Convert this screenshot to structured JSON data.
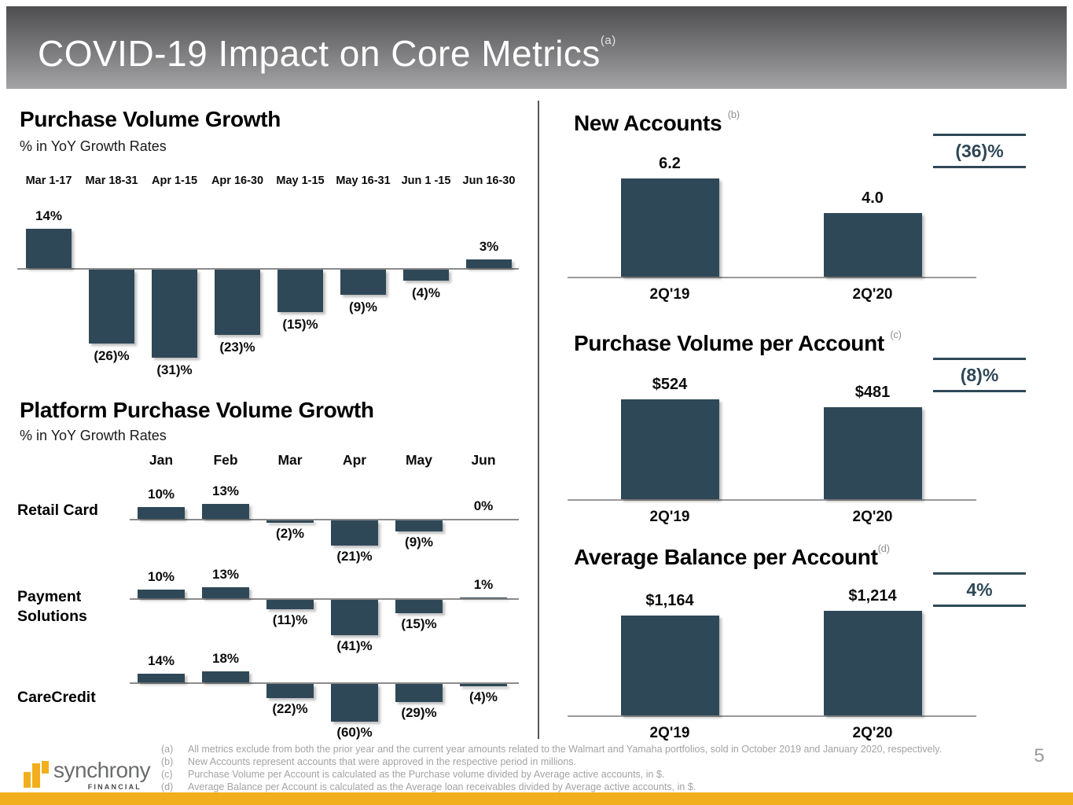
{
  "header": {
    "title": "COVID-19 Impact on Core Metrics",
    "footnote_ref": "(a)"
  },
  "chart_data": [
    {
      "id": "purchase_volume_growth",
      "type": "bar",
      "title": "Purchase Volume Growth",
      "subtitle": "% in YoY Growth Rates",
      "categories": [
        "Mar 1-17",
        "Mar 18-31",
        "Apr 1-15",
        "Apr 16-30",
        "May 1-15",
        "May 16-31",
        "Jun 1 -15",
        "Jun 16-30"
      ],
      "values": [
        14,
        -26,
        -31,
        -23,
        -15,
        -9,
        -4,
        3
      ],
      "labels": [
        "14%",
        "(26)%",
        "(31)%",
        "(23)%",
        "(15)%",
        "(9)%",
        "(4)%",
        "3%"
      ],
      "unit": "percent",
      "bar_color": "#2F4858"
    },
    {
      "id": "platform_purchase_volume_growth",
      "type": "bar",
      "title": "Platform Purchase Volume Growth",
      "subtitle": "% in YoY Growth Rates",
      "categories": [
        "Jan",
        "Feb",
        "Mar",
        "Apr",
        "May",
        "Jun"
      ],
      "series": [
        {
          "name": "Retail Card",
          "values": [
            10,
            13,
            -2,
            -21,
            -9,
            0
          ],
          "labels": [
            "10%",
            "13%",
            "(2)%",
            "(21)%",
            "(9)%",
            "0%"
          ]
        },
        {
          "name": "Payment Solutions",
          "values": [
            10,
            13,
            -11,
            -41,
            -15,
            1
          ],
          "labels": [
            "10%",
            "13%",
            "(11)%",
            "(41)%",
            "(15)%",
            "1%"
          ]
        },
        {
          "name": "CareCredit",
          "values": [
            14,
            18,
            -22,
            -60,
            -29,
            -4
          ],
          "labels": [
            "14%",
            "18%",
            "(22)%",
            "(60)%",
            "(29)%",
            "(4)%"
          ]
        }
      ],
      "unit": "percent",
      "bar_color": "#2F4858"
    },
    {
      "id": "new_accounts",
      "type": "bar",
      "title": "New Accounts",
      "footnote_ref": "(b)",
      "categories": [
        "2Q'19",
        "2Q'20"
      ],
      "values": [
        6.2,
        4.0
      ],
      "labels": [
        "6.2",
        "4.0"
      ],
      "change": "(36)%",
      "unit": "millions",
      "bar_color": "#2F4858"
    },
    {
      "id": "purchase_volume_per_account",
      "type": "bar",
      "title": "Purchase Volume per Account",
      "footnote_ref": "(c)",
      "categories": [
        "2Q'19",
        "2Q'20"
      ],
      "values": [
        524,
        481
      ],
      "labels": [
        "$524",
        "$481"
      ],
      "change": "(8)%",
      "unit": "dollars",
      "bar_color": "#2F4858"
    },
    {
      "id": "average_balance_per_account",
      "type": "bar",
      "title": "Average Balance per Account",
      "footnote_ref": "(d)",
      "categories": [
        "2Q'19",
        "2Q'20"
      ],
      "values": [
        1164,
        1214
      ],
      "labels": [
        "$1,164",
        "$1,214"
      ],
      "change": "4%",
      "unit": "dollars",
      "bar_color": "#2F4858"
    }
  ],
  "footnotes": [
    {
      "ref": "(a)",
      "text": "All metrics exclude from both the prior year and the current year amounts related to the Walmart and Yamaha portfolios, sold in October 2019 and January 2020, respectively."
    },
    {
      "ref": "(b)",
      "text": "New Accounts represent accounts that were approved in the respective period in millions."
    },
    {
      "ref": "(c)",
      "text": "Purchase Volume per Account is calculated as the Purchase volume divided by Average active accounts, in $."
    },
    {
      "ref": "(d)",
      "text": "Average Balance per Account is calculated as the Average loan receivables divided by Average active accounts, in $."
    }
  ],
  "footer": {
    "brand": "synchrony",
    "brand_sub": "FINANCIAL"
  },
  "page_number": "5",
  "colors": {
    "bar_navy": "#2F4858",
    "accent_yellow": "#F2AF1D",
    "header_gray_top": "#4e4e50",
    "header_gray_bottom": "#a4a4a6"
  }
}
